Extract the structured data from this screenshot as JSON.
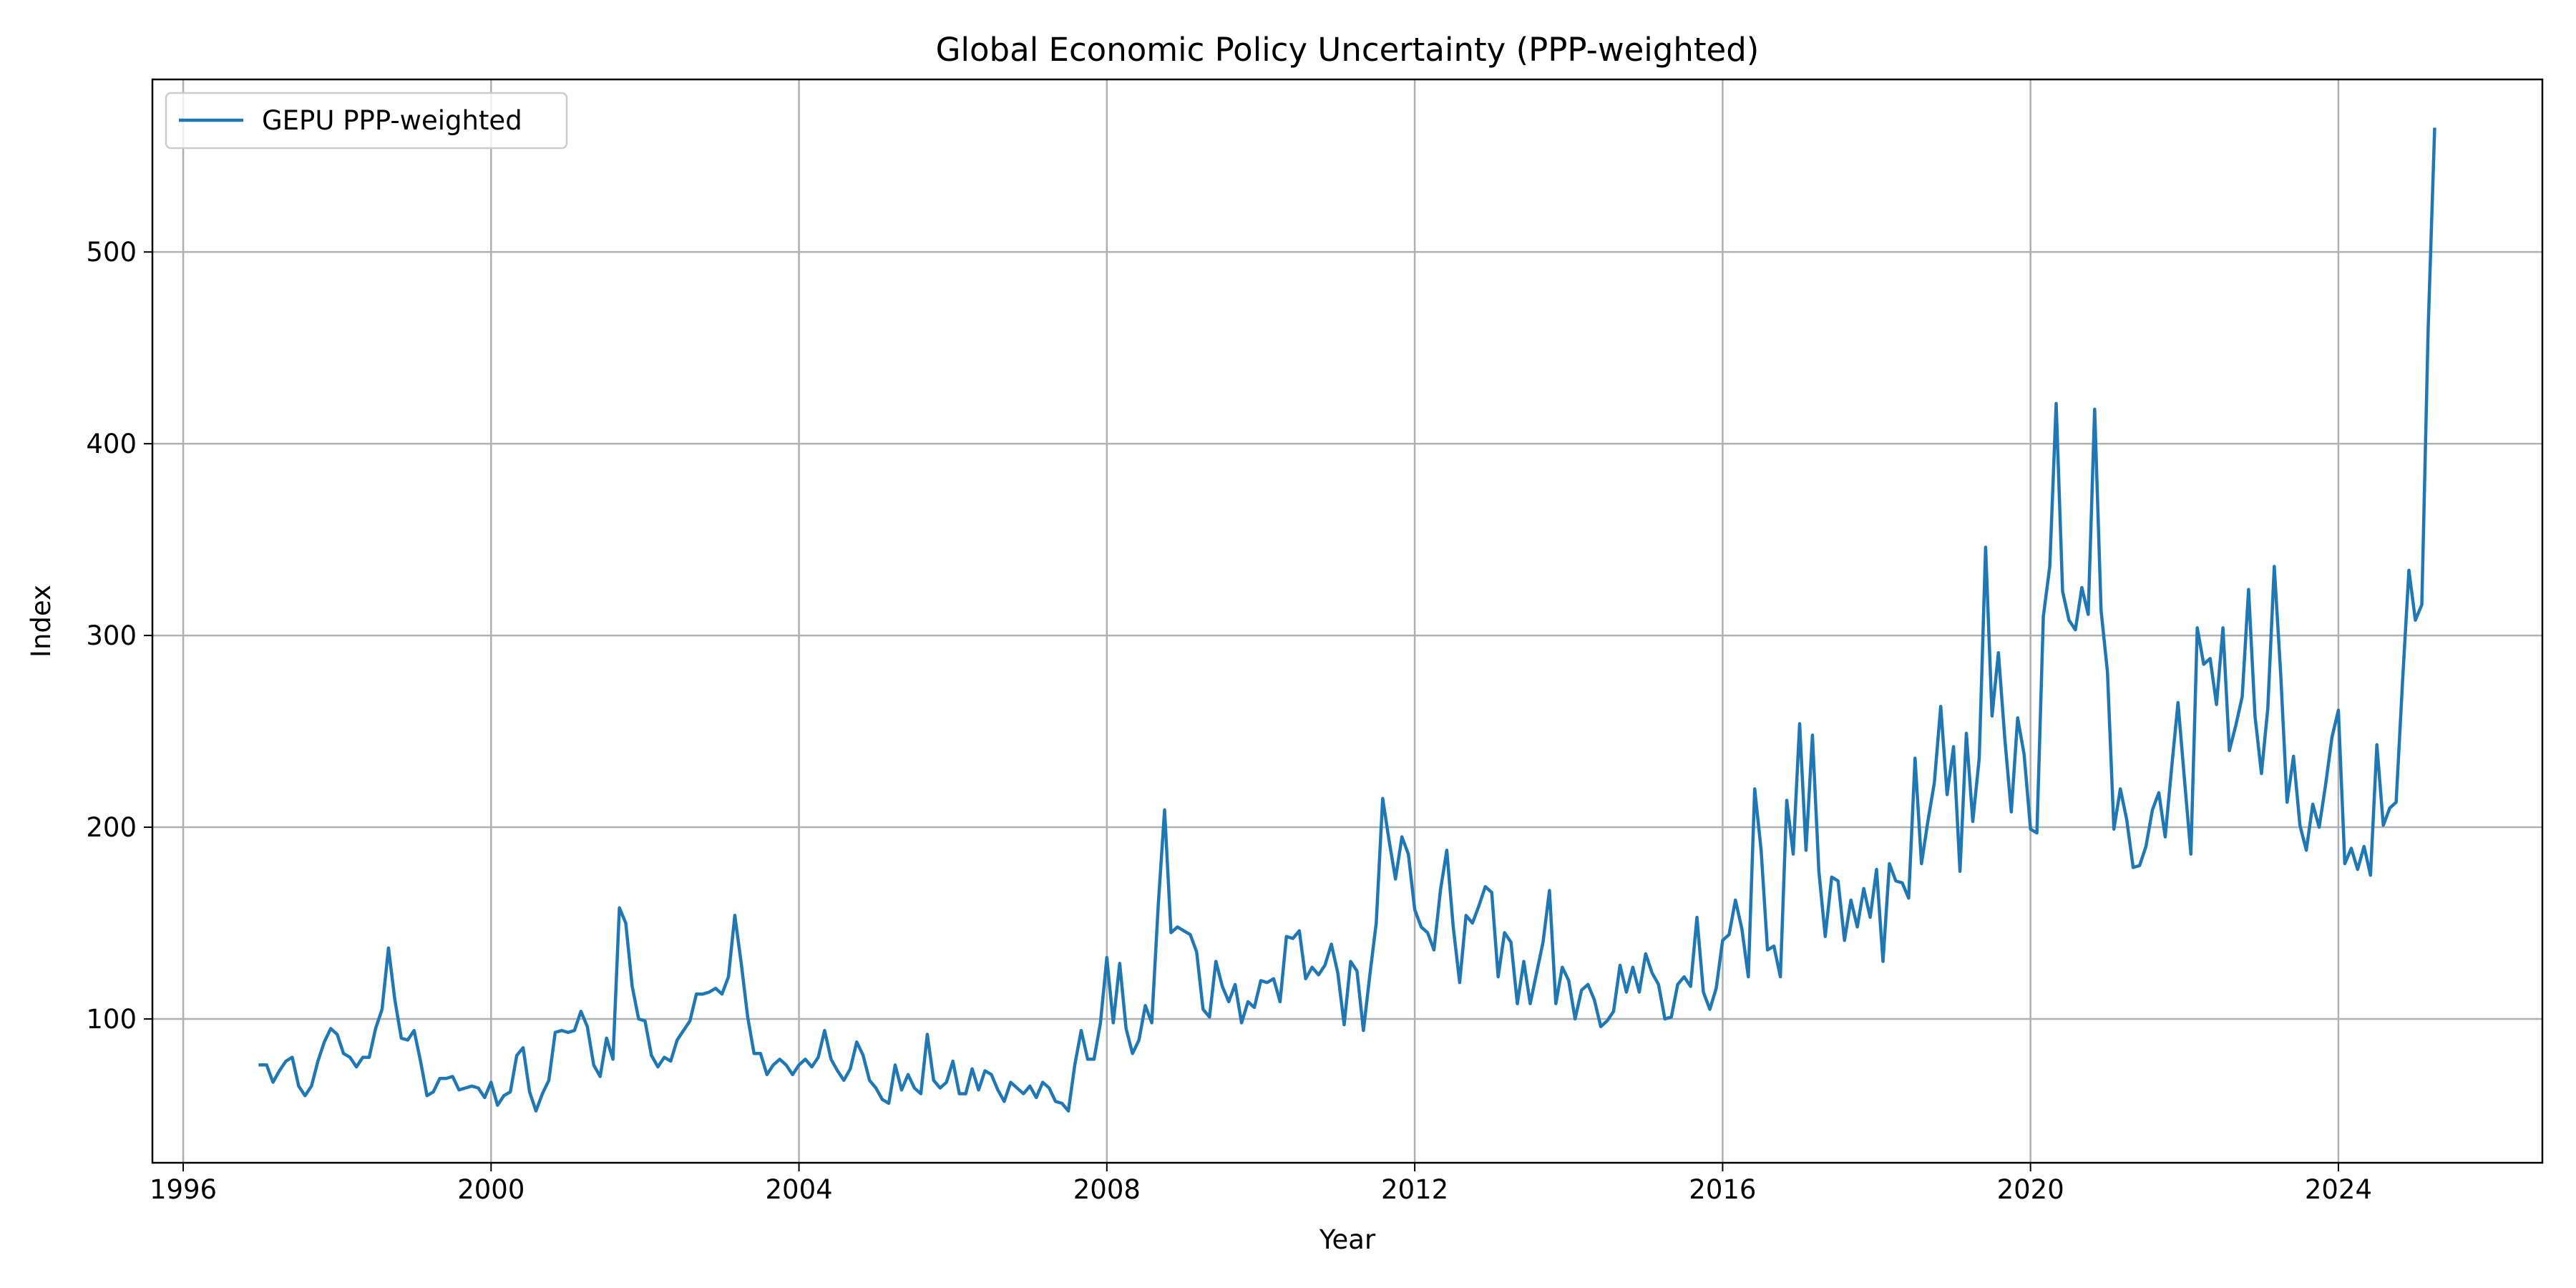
{
  "chart_data": {
    "type": "line",
    "title": "Global Economic Policy Uncertainty (PPP-weighted)",
    "xlabel": "Year",
    "ylabel": "Index",
    "xlim": [
      1995.6,
      2026.65
    ],
    "ylim": [
      25,
      590
    ],
    "x_ticks": [
      1996,
      2000,
      2004,
      2008,
      2012,
      2016,
      2020,
      2024
    ],
    "y_ticks": [
      100,
      200,
      300,
      400,
      500
    ],
    "grid": true,
    "legend_position": "top-left",
    "series": [
      {
        "name": "GEPU PPP-weighted",
        "color": "#1f77b4",
        "start_year": 1997,
        "start_month": 1,
        "frequency": "monthly",
        "values": [
          76,
          76,
          67,
          73,
          78,
          80,
          65,
          60,
          65,
          78,
          88,
          95,
          92,
          82,
          80,
          75,
          80,
          80,
          95,
          105,
          137,
          110,
          90,
          89,
          94,
          78,
          60,
          62,
          69,
          69,
          70,
          63,
          64,
          65,
          64,
          59,
          67,
          55,
          60,
          62,
          81,
          85,
          62,
          52,
          61,
          68,
          93,
          94,
          93,
          94,
          104,
          96,
          76,
          70,
          90,
          79,
          158,
          150,
          117,
          100,
          99,
          81,
          75,
          80,
          78,
          89,
          94,
          99,
          113,
          113,
          114,
          116,
          113,
          122,
          154,
          129,
          101,
          82,
          82,
          71,
          76,
          79,
          76,
          71,
          76,
          79,
          75,
          80,
          94,
          79,
          73,
          68,
          74,
          88,
          81,
          68,
          64,
          58,
          56,
          76,
          63,
          71,
          64,
          61,
          92,
          68,
          64,
          67,
          78,
          61,
          61,
          74,
          63,
          73,
          71,
          63,
          57,
          67,
          64,
          61,
          65,
          59,
          67,
          64,
          57,
          56,
          52,
          76,
          94,
          79,
          79,
          98,
          132,
          98,
          129,
          95,
          82,
          89,
          107,
          98,
          159,
          209,
          145,
          148,
          146,
          144,
          135,
          105,
          101,
          130,
          117,
          109,
          118,
          98,
          109,
          106,
          120,
          119,
          121,
          109,
          143,
          142,
          146,
          121,
          127,
          123,
          128,
          139,
          124,
          97,
          130,
          125,
          94,
          123,
          150,
          215,
          193,
          173,
          195,
          186,
          157,
          148,
          145,
          136,
          167,
          188,
          148,
          119,
          154,
          150,
          159,
          169,
          166,
          122,
          145,
          140,
          108,
          130,
          108,
          124,
          140,
          167,
          108,
          127,
          120,
          100,
          115,
          118,
          110,
          96,
          99,
          104,
          128,
          114,
          127,
          114,
          134,
          124,
          118,
          100,
          101,
          118,
          122,
          117,
          153,
          114,
          105,
          116,
          141,
          144,
          162,
          147,
          122,
          220,
          188,
          136,
          138,
          122,
          214,
          186,
          254,
          188,
          248,
          177,
          143,
          174,
          172,
          141,
          162,
          148,
          168,
          153,
          178,
          130,
          181,
          172,
          171,
          163,
          236,
          181,
          203,
          223,
          263,
          217,
          242,
          177,
          249,
          203,
          236,
          346,
          258,
          291,
          246,
          208,
          257,
          238,
          199,
          197,
          310,
          336,
          421,
          323,
          308,
          303,
          325,
          311,
          418,
          313,
          281,
          199,
          220,
          204,
          179,
          180,
          190,
          209,
          218,
          195,
          231,
          265,
          225,
          186,
          304,
          285,
          288,
          264,
          304,
          240,
          253,
          268,
          324,
          258,
          228,
          262,
          336,
          280,
          213,
          237,
          201,
          188,
          212,
          200,
          222,
          247,
          261,
          181,
          189,
          178,
          190,
          175,
          243,
          201,
          210,
          213,
          276,
          334,
          308,
          316,
          460,
          564
        ]
      }
    ]
  }
}
